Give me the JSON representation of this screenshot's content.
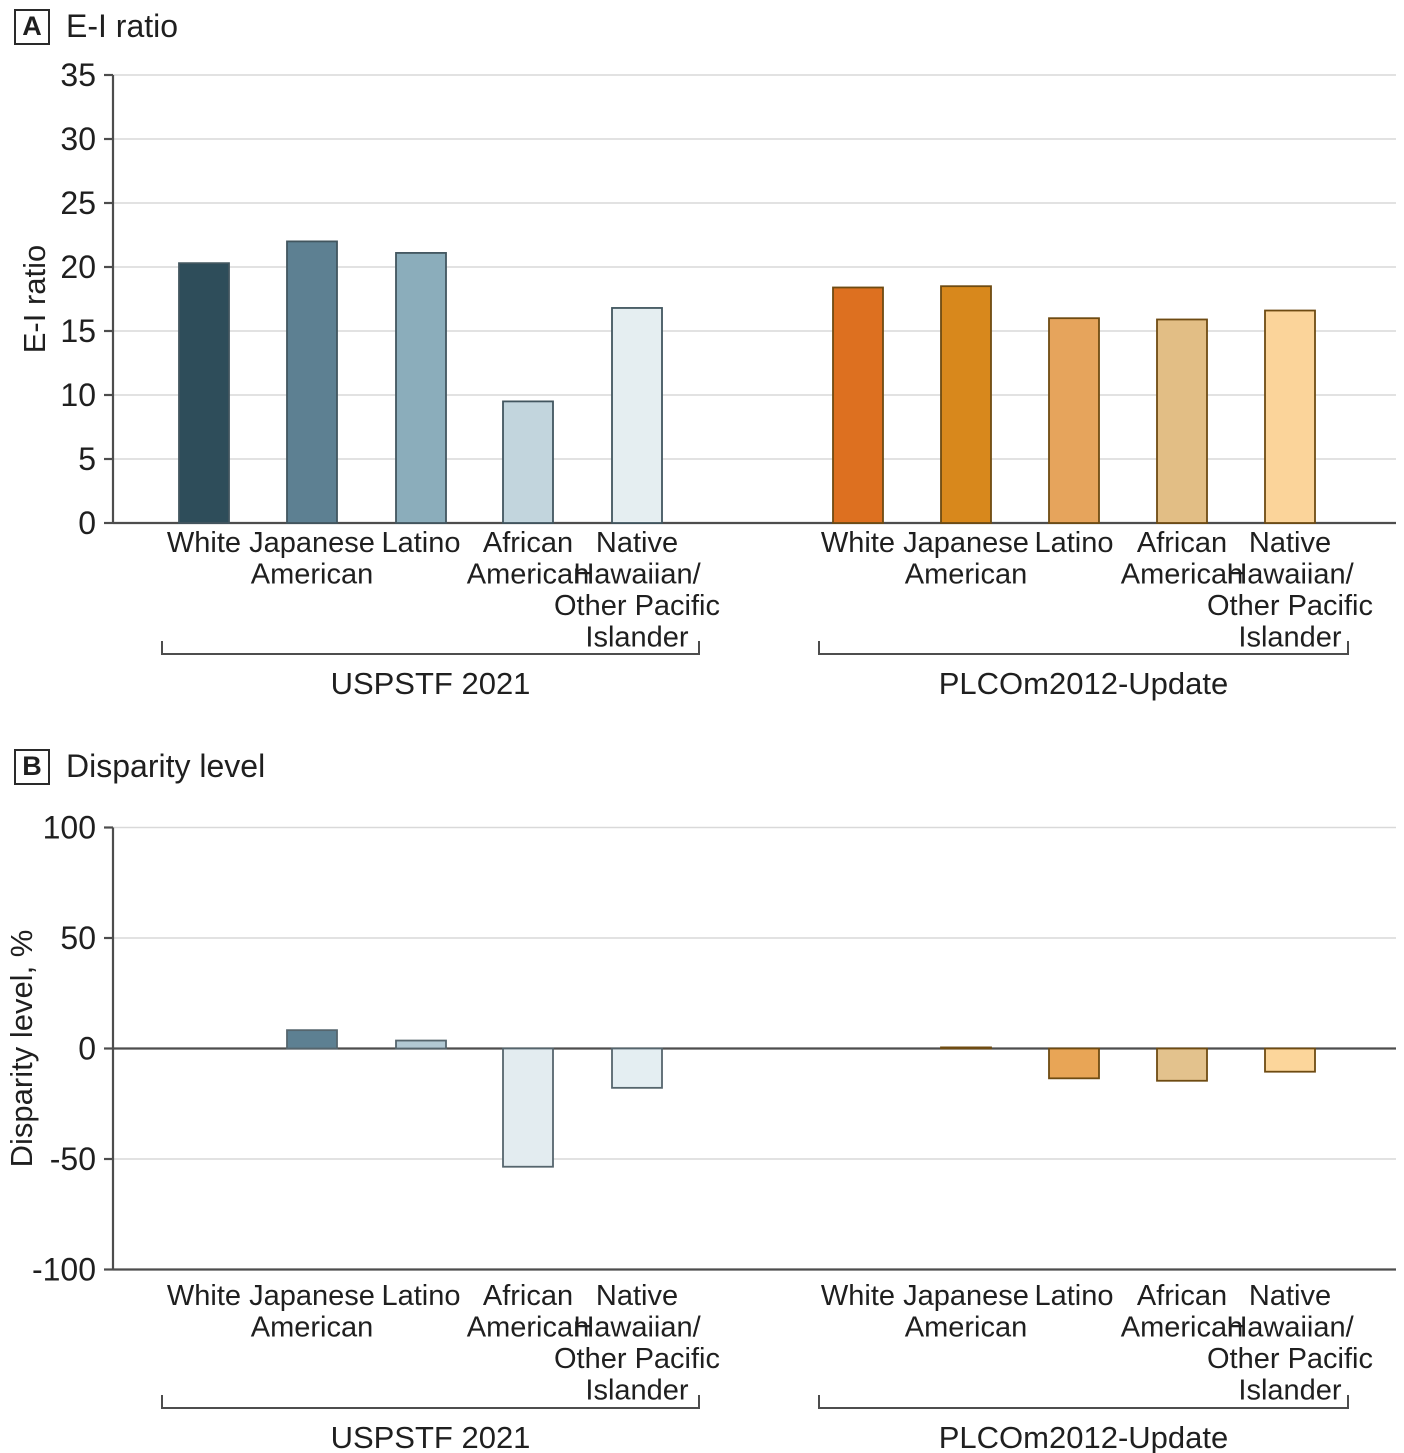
{
  "figure": {
    "panels": [
      {
        "letter": "A",
        "title": "E-I ratio"
      },
      {
        "letter": "B",
        "title": "Disparity level"
      }
    ]
  },
  "style": {
    "grid_color": "#d9d9d9",
    "axis_color": "#4d4d4d",
    "text_color": "#1f1f1f",
    "background": "#ffffff"
  },
  "chart_data": [
    {
      "type": "bar",
      "panel": "A",
      "title": "E-I ratio",
      "xlabel": "",
      "ylabel": "E-I ratio",
      "ylim": [
        0,
        35
      ],
      "yticks": [
        0,
        5,
        10,
        15,
        20,
        25,
        30,
        35
      ],
      "grid": true,
      "legend": "none",
      "categories": [
        [
          "White"
        ],
        [
          "Japanese",
          "American"
        ],
        [
          "Latino"
        ],
        [
          "African",
          "American"
        ],
        [
          "Native",
          "Hawaiian/",
          "Other Pacific",
          "Islander"
        ]
      ],
      "groups": [
        {
          "label": "USPSTF 2021",
          "values": [
            20.3,
            22.0,
            21.1,
            9.5,
            16.8
          ],
          "colors": [
            "#2e4d5a",
            "#5d8092",
            "#8badbb",
            "#c2d5dd",
            "#e5eef1"
          ],
          "bar_border": "#42565f"
        },
        {
          "label": "PLCOm2012-Update",
          "values": [
            18.4,
            18.5,
            16.0,
            15.9,
            16.6
          ],
          "colors": [
            "#dd7020",
            "#d8881c",
            "#e6a45c",
            "#e2be85",
            "#fbd49a"
          ],
          "bar_border": "#6e4b12"
        }
      ]
    },
    {
      "type": "bar",
      "panel": "B",
      "title": "Disparity level",
      "xlabel": "",
      "ylabel": "Disparity level, %",
      "ylim": [
        -100,
        100
      ],
      "yticks": [
        -100,
        -50,
        0,
        50,
        100
      ],
      "grid": true,
      "legend": "none",
      "categories": [
        [
          "White"
        ],
        [
          "Japanese",
          "American"
        ],
        [
          "Latino"
        ],
        [
          "African",
          "American"
        ],
        [
          "Native",
          "Hawaiian/",
          "Other Pacific",
          "Islander"
        ]
      ],
      "groups": [
        {
          "label": "USPSTF 2021",
          "values": [
            0,
            8.3,
            3.6,
            -53.5,
            -17.8
          ],
          "colors": [
            "#2e4d5a",
            "#5d8092",
            "#b2c9d4",
            "#e3ecf0",
            "#e4eef2"
          ],
          "bar_border": "#55656d"
        },
        {
          "label": "PLCOm2012-Update",
          "values": [
            0,
            0.5,
            -13.5,
            -14.6,
            -10.5
          ],
          "colors": [
            "#dd7020",
            "#d8881c",
            "#e8a556",
            "#e3c28d",
            "#fcd69b"
          ],
          "bar_border": "#6e4b12"
        }
      ]
    }
  ]
}
